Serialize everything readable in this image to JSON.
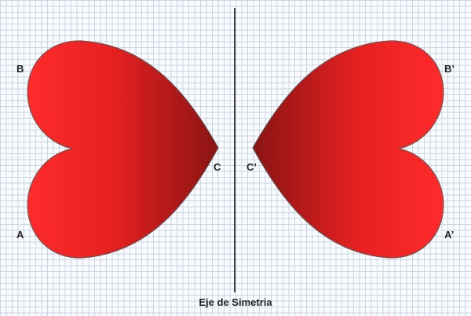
{
  "colors": {
    "heart_light": "#ff2b2b",
    "heart_dark": "#8a1414",
    "heart_outline": "#5a5a5a",
    "axis_line": "#111111",
    "grid_line": "#c9d6e6"
  },
  "shapes": [
    {
      "name": "original-heart",
      "icon": "heart-icon"
    },
    {
      "name": "reflected-heart",
      "icon": "heart-icon"
    }
  ],
  "points": {
    "original": {
      "a": "A",
      "b": "B",
      "c": "C"
    },
    "reflected": {
      "a": "A’",
      "b": "B’",
      "c": "C’"
    }
  },
  "axis": {
    "label": "Eje de Simetria"
  }
}
